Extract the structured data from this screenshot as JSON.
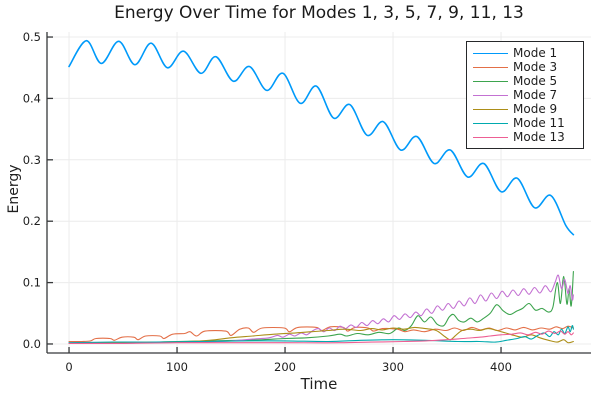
{
  "chart_data": {
    "type": "line",
    "title": "Energy Over Time for Modes 1, 3, 5, 7, 9, 11, 13",
    "xlabel": "Time",
    "ylabel": "Energy",
    "xlim": [
      -20.4,
      483.3
    ],
    "ylim": [
      -0.0147,
      0.5082
    ],
    "xticks": [
      0,
      100,
      200,
      300,
      400
    ],
    "xtick_labels": [
      "0",
      "100",
      "200",
      "300",
      "400"
    ],
    "yticks": [
      0.0,
      0.1,
      0.2,
      0.3,
      0.4,
      0.5
    ],
    "ytick_labels": [
      "0.0",
      "0.1",
      "0.2",
      "0.3",
      "0.4",
      "0.5"
    ],
    "grid": true,
    "legend_position": "top-right",
    "axis_color": "#36383a",
    "grid_color": "#ececec",
    "text_color": "#1f1f1f",
    "series": [
      {
        "name": "Mode 1",
        "color": "#009AFA",
        "points": [
          [
            0,
            0.452
          ],
          [
            16,
            0.494
          ],
          [
            30,
            0.457
          ],
          [
            46,
            0.493
          ],
          [
            61,
            0.455
          ],
          [
            76,
            0.49
          ],
          [
            91,
            0.45
          ],
          [
            106,
            0.477
          ],
          [
            122,
            0.441
          ],
          [
            136,
            0.468
          ],
          [
            152,
            0.428
          ],
          [
            167,
            0.452
          ],
          [
            183,
            0.413
          ],
          [
            198,
            0.441
          ],
          [
            214,
            0.392
          ],
          [
            229,
            0.42
          ],
          [
            245,
            0.368
          ],
          [
            260,
            0.39
          ],
          [
            276,
            0.34
          ],
          [
            291,
            0.362
          ],
          [
            307,
            0.316
          ],
          [
            322,
            0.338
          ],
          [
            338,
            0.294
          ],
          [
            353,
            0.316
          ],
          [
            369,
            0.272
          ],
          [
            384,
            0.294
          ],
          [
            400,
            0.248
          ],
          [
            415,
            0.27
          ],
          [
            431,
            0.222
          ],
          [
            446,
            0.242
          ],
          [
            460,
            0.193
          ],
          [
            467,
            0.178
          ]
        ]
      },
      {
        "name": "Mode 3",
        "color": "#E36F47",
        "points": [
          [
            0,
            0.004
          ],
          [
            12,
            0.004
          ],
          [
            20,
            0.005
          ],
          [
            25,
            0.009
          ],
          [
            38,
            0.009
          ],
          [
            42,
            0.006
          ],
          [
            49,
            0.011
          ],
          [
            60,
            0.011
          ],
          [
            64,
            0.007
          ],
          [
            71,
            0.013
          ],
          [
            84,
            0.013
          ],
          [
            88,
            0.009
          ],
          [
            96,
            0.016
          ],
          [
            107,
            0.017
          ],
          [
            112,
            0.02
          ],
          [
            118,
            0.013
          ],
          [
            126,
            0.021
          ],
          [
            145,
            0.021
          ],
          [
            150,
            0.014
          ],
          [
            158,
            0.024
          ],
          [
            166,
            0.026
          ],
          [
            171,
            0.019
          ],
          [
            179,
            0.026
          ],
          [
            199,
            0.026
          ],
          [
            204,
            0.02
          ],
          [
            212,
            0.027
          ],
          [
            229,
            0.027
          ],
          [
            234,
            0.022
          ],
          [
            242,
            0.028
          ],
          [
            254,
            0.027
          ],
          [
            258,
            0.021
          ],
          [
            265,
            0.027
          ],
          [
            277,
            0.026
          ],
          [
            282,
            0.021
          ],
          [
            290,
            0.025
          ],
          [
            304,
            0.024
          ],
          [
            311,
            0.02
          ],
          [
            319,
            0.023
          ],
          [
            329,
            0.02
          ],
          [
            339,
            0.024
          ],
          [
            349,
            0.022
          ],
          [
            357,
            0.026
          ],
          [
            365,
            0.022
          ],
          [
            373,
            0.027
          ],
          [
            381,
            0.023
          ],
          [
            389,
            0.026
          ],
          [
            397,
            0.022
          ],
          [
            405,
            0.026
          ],
          [
            413,
            0.023
          ],
          [
            421,
            0.027
          ],
          [
            429,
            0.023
          ],
          [
            437,
            0.026
          ],
          [
            445,
            0.024
          ],
          [
            451,
            0.028
          ],
          [
            457,
            0.025
          ],
          [
            462,
            0.029
          ],
          [
            467,
            0.026
          ]
        ]
      },
      {
        "name": "Mode 5",
        "color": "#3DA44E",
        "points": [
          [
            0,
            0.001
          ],
          [
            40,
            0.001
          ],
          [
            70,
            0.002
          ],
          [
            100,
            0.004
          ],
          [
            130,
            0.005
          ],
          [
            160,
            0.006
          ],
          [
            180,
            0.007
          ],
          [
            200,
            0.009
          ],
          [
            220,
            0.01
          ],
          [
            240,
            0.013
          ],
          [
            251,
            0.016
          ],
          [
            257,
            0.013
          ],
          [
            267,
            0.017
          ],
          [
            277,
            0.015
          ],
          [
            287,
            0.019
          ],
          [
            297,
            0.017
          ],
          [
            305,
            0.026
          ],
          [
            311,
            0.022
          ],
          [
            317,
            0.03
          ],
          [
            323,
            0.046
          ],
          [
            329,
            0.036
          ],
          [
            335,
            0.044
          ],
          [
            341,
            0.032
          ],
          [
            347,
            0.03
          ],
          [
            352,
            0.044
          ],
          [
            356,
            0.048
          ],
          [
            361,
            0.038
          ],
          [
            366,
            0.036
          ],
          [
            372,
            0.042
          ],
          [
            378,
            0.036
          ],
          [
            384,
            0.042
          ],
          [
            390,
            0.05
          ],
          [
            396,
            0.064
          ],
          [
            402,
            0.054
          ],
          [
            408,
            0.048
          ],
          [
            414,
            0.053
          ],
          [
            420,
            0.058
          ],
          [
            426,
            0.066
          ],
          [
            432,
            0.055
          ],
          [
            438,
            0.058
          ],
          [
            444,
            0.052
          ],
          [
            448,
            0.06
          ],
          [
            452,
            0.1
          ],
          [
            455,
            0.066
          ],
          [
            458,
            0.11
          ],
          [
            461,
            0.065
          ],
          [
            463,
            0.09
          ],
          [
            465,
            0.062
          ],
          [
            467,
            0.118
          ]
        ]
      },
      {
        "name": "Mode 7",
        "color": "#C371D2",
        "points": [
          [
            0,
            0.001
          ],
          [
            40,
            0.001
          ],
          [
            80,
            0.002
          ],
          [
            120,
            0.003
          ],
          [
            150,
            0.005
          ],
          [
            170,
            0.008
          ],
          [
            185,
            0.01
          ],
          [
            193,
            0.014
          ],
          [
            198,
            0.011
          ],
          [
            204,
            0.016
          ],
          [
            209,
            0.013
          ],
          [
            215,
            0.018
          ],
          [
            220,
            0.015
          ],
          [
            226,
            0.022
          ],
          [
            231,
            0.025
          ],
          [
            236,
            0.02
          ],
          [
            241,
            0.026
          ],
          [
            246,
            0.022
          ],
          [
            251,
            0.029
          ],
          [
            256,
            0.025
          ],
          [
            261,
            0.031
          ],
          [
            266,
            0.027
          ],
          [
            271,
            0.035
          ],
          [
            276,
            0.03
          ],
          [
            281,
            0.038
          ],
          [
            286,
            0.033
          ],
          [
            291,
            0.041
          ],
          [
            296,
            0.036
          ],
          [
            301,
            0.046
          ],
          [
            306,
            0.04
          ],
          [
            311,
            0.049
          ],
          [
            316,
            0.043
          ],
          [
            321,
            0.052
          ],
          [
            326,
            0.046
          ],
          [
            331,
            0.057
          ],
          [
            336,
            0.05
          ],
          [
            341,
            0.062
          ],
          [
            346,
            0.055
          ],
          [
            351,
            0.066
          ],
          [
            356,
            0.058
          ],
          [
            361,
            0.07
          ],
          [
            366,
            0.062
          ],
          [
            371,
            0.075
          ],
          [
            376,
            0.066
          ],
          [
            381,
            0.08
          ],
          [
            386,
            0.07
          ],
          [
            391,
            0.083
          ],
          [
            396,
            0.074
          ],
          [
            401,
            0.086
          ],
          [
            406,
            0.077
          ],
          [
            411,
            0.088
          ],
          [
            416,
            0.079
          ],
          [
            421,
            0.09
          ],
          [
            426,
            0.081
          ],
          [
            431,
            0.092
          ],
          [
            436,
            0.083
          ],
          [
            441,
            0.095
          ],
          [
            446,
            0.085
          ],
          [
            450,
            0.1
          ],
          [
            453,
            0.112
          ],
          [
            456,
            0.09
          ],
          [
            459,
            0.105
          ],
          [
            462,
            0.082
          ],
          [
            464,
            0.095
          ],
          [
            466,
            0.072
          ],
          [
            467,
            0.08
          ]
        ]
      },
      {
        "name": "Mode 9",
        "color": "#AC8E18",
        "points": [
          [
            0,
            0.001
          ],
          [
            40,
            0.002
          ],
          [
            80,
            0.003
          ],
          [
            110,
            0.004
          ],
          [
            130,
            0.006
          ],
          [
            150,
            0.01
          ],
          [
            170,
            0.013
          ],
          [
            190,
            0.016
          ],
          [
            210,
            0.018
          ],
          [
            225,
            0.02
          ],
          [
            240,
            0.022
          ],
          [
            255,
            0.024
          ],
          [
            270,
            0.022
          ],
          [
            280,
            0.025
          ],
          [
            290,
            0.023
          ],
          [
            300,
            0.026
          ],
          [
            310,
            0.024
          ],
          [
            320,
            0.027
          ],
          [
            330,
            0.025
          ],
          [
            340,
            0.022
          ],
          [
            348,
            0.012
          ],
          [
            353,
            0.007
          ],
          [
            358,
            0.014
          ],
          [
            364,
            0.022
          ],
          [
            372,
            0.024
          ],
          [
            380,
            0.022
          ],
          [
            388,
            0.025
          ],
          [
            396,
            0.022
          ],
          [
            404,
            0.018
          ],
          [
            412,
            0.014
          ],
          [
            420,
            0.011
          ],
          [
            428,
            0.015
          ],
          [
            436,
            0.01
          ],
          [
            444,
            0.006
          ],
          [
            452,
            0.003
          ],
          [
            458,
            0.007
          ],
          [
            462,
            0.002
          ],
          [
            467,
            0.004
          ]
        ]
      },
      {
        "name": "Mode 11",
        "color": "#00AAAE",
        "points": [
          [
            0,
            0.002
          ],
          [
            40,
            0.003
          ],
          [
            80,
            0.003
          ],
          [
            120,
            0.004
          ],
          [
            160,
            0.005
          ],
          [
            200,
            0.005
          ],
          [
            240,
            0.004
          ],
          [
            270,
            0.006
          ],
          [
            300,
            0.007
          ],
          [
            330,
            0.006
          ],
          [
            360,
            0.004
          ],
          [
            380,
            0.004
          ],
          [
            395,
            0.003
          ],
          [
            405,
            0.006
          ],
          [
            415,
            0.009
          ],
          [
            422,
            0.012
          ],
          [
            428,
            0.008
          ],
          [
            434,
            0.014
          ],
          [
            440,
            0.018
          ],
          [
            445,
            0.012
          ],
          [
            449,
            0.02
          ],
          [
            453,
            0.015
          ],
          [
            456,
            0.024
          ],
          [
            459,
            0.017
          ],
          [
            462,
            0.028
          ],
          [
            464,
            0.02
          ],
          [
            466,
            0.03
          ],
          [
            467,
            0.024
          ]
        ]
      },
      {
        "name": "Mode 13",
        "color": "#ED5E93",
        "points": [
          [
            0,
            0.001
          ],
          [
            50,
            0.001
          ],
          [
            100,
            0.002
          ],
          [
            150,
            0.002
          ],
          [
            200,
            0.002
          ],
          [
            250,
            0.002
          ],
          [
            280,
            0.003
          ],
          [
            310,
            0.004
          ],
          [
            330,
            0.005
          ],
          [
            350,
            0.007
          ],
          [
            365,
            0.009
          ],
          [
            380,
            0.011
          ],
          [
            390,
            0.013
          ],
          [
            400,
            0.015
          ],
          [
            410,
            0.016
          ],
          [
            418,
            0.018
          ],
          [
            425,
            0.015
          ],
          [
            432,
            0.019
          ],
          [
            438,
            0.016
          ],
          [
            444,
            0.021
          ],
          [
            450,
            0.017
          ],
          [
            455,
            0.021
          ],
          [
            459,
            0.016
          ],
          [
            462,
            0.02
          ],
          [
            465,
            0.015
          ],
          [
            467,
            0.018
          ]
        ]
      }
    ]
  }
}
